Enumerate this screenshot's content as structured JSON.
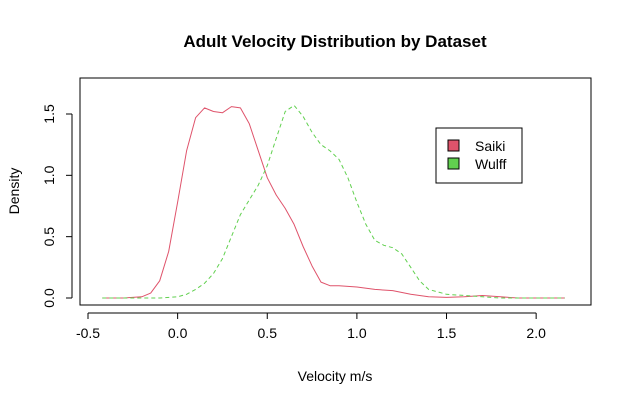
{
  "chart_data": {
    "type": "line",
    "title": "Adult Velocity Distribution by Dataset",
    "xlabel": "Velocity m/s",
    "ylabel": "Density",
    "xlim": [
      -0.5,
      2.2
    ],
    "ylim": [
      0,
      1.72
    ],
    "x_ticks": [
      "-0.5",
      "0.0",
      "0.5",
      "1.0",
      "1.5",
      "2.0"
    ],
    "y_ticks": [
      "0.0",
      "0.5",
      "1.0",
      "1.5"
    ],
    "grid": false,
    "legend_position": "right",
    "series": [
      {
        "name": "Saiki",
        "color": "#DF536B",
        "line_style": "solid",
        "points": [
          [
            -0.42,
            0.0
          ],
          [
            -0.3,
            0.0
          ],
          [
            -0.2,
            0.01
          ],
          [
            -0.15,
            0.04
          ],
          [
            -0.1,
            0.14
          ],
          [
            -0.05,
            0.38
          ],
          [
            0.0,
            0.78
          ],
          [
            0.05,
            1.2
          ],
          [
            0.1,
            1.47
          ],
          [
            0.15,
            1.55
          ],
          [
            0.2,
            1.52
          ],
          [
            0.25,
            1.51
          ],
          [
            0.3,
            1.56
          ],
          [
            0.35,
            1.55
          ],
          [
            0.4,
            1.42
          ],
          [
            0.45,
            1.2
          ],
          [
            0.5,
            0.98
          ],
          [
            0.55,
            0.84
          ],
          [
            0.6,
            0.73
          ],
          [
            0.65,
            0.6
          ],
          [
            0.7,
            0.42
          ],
          [
            0.75,
            0.26
          ],
          [
            0.8,
            0.13
          ],
          [
            0.85,
            0.1
          ],
          [
            0.9,
            0.1
          ],
          [
            1.0,
            0.09
          ],
          [
            1.1,
            0.07
          ],
          [
            1.2,
            0.06
          ],
          [
            1.3,
            0.03
          ],
          [
            1.4,
            0.01
          ],
          [
            1.5,
            0.005
          ],
          [
            1.6,
            0.01
          ],
          [
            1.7,
            0.02
          ],
          [
            1.8,
            0.01
          ],
          [
            1.9,
            0.0
          ],
          [
            2.0,
            0.0
          ],
          [
            2.16,
            0.0
          ]
        ]
      },
      {
        "name": "Wulff",
        "color": "#61D04F",
        "line_style": "dashed",
        "points": [
          [
            -0.42,
            0.0
          ],
          [
            -0.2,
            0.0
          ],
          [
            -0.1,
            0.0
          ],
          [
            0.0,
            0.01
          ],
          [
            0.05,
            0.03
          ],
          [
            0.1,
            0.07
          ],
          [
            0.15,
            0.12
          ],
          [
            0.2,
            0.2
          ],
          [
            0.25,
            0.32
          ],
          [
            0.3,
            0.5
          ],
          [
            0.35,
            0.68
          ],
          [
            0.4,
            0.8
          ],
          [
            0.45,
            0.92
          ],
          [
            0.5,
            1.08
          ],
          [
            0.55,
            1.3
          ],
          [
            0.6,
            1.52
          ],
          [
            0.65,
            1.57
          ],
          [
            0.7,
            1.48
          ],
          [
            0.75,
            1.35
          ],
          [
            0.8,
            1.25
          ],
          [
            0.85,
            1.2
          ],
          [
            0.9,
            1.13
          ],
          [
            0.95,
            0.98
          ],
          [
            1.0,
            0.78
          ],
          [
            1.05,
            0.6
          ],
          [
            1.1,
            0.47
          ],
          [
            1.15,
            0.43
          ],
          [
            1.2,
            0.41
          ],
          [
            1.25,
            0.36
          ],
          [
            1.3,
            0.25
          ],
          [
            1.35,
            0.14
          ],
          [
            1.4,
            0.07
          ],
          [
            1.5,
            0.03
          ],
          [
            1.6,
            0.02
          ],
          [
            1.7,
            0.01
          ],
          [
            1.8,
            0.0
          ],
          [
            2.0,
            0.0
          ],
          [
            2.16,
            0.0
          ]
        ]
      }
    ]
  }
}
